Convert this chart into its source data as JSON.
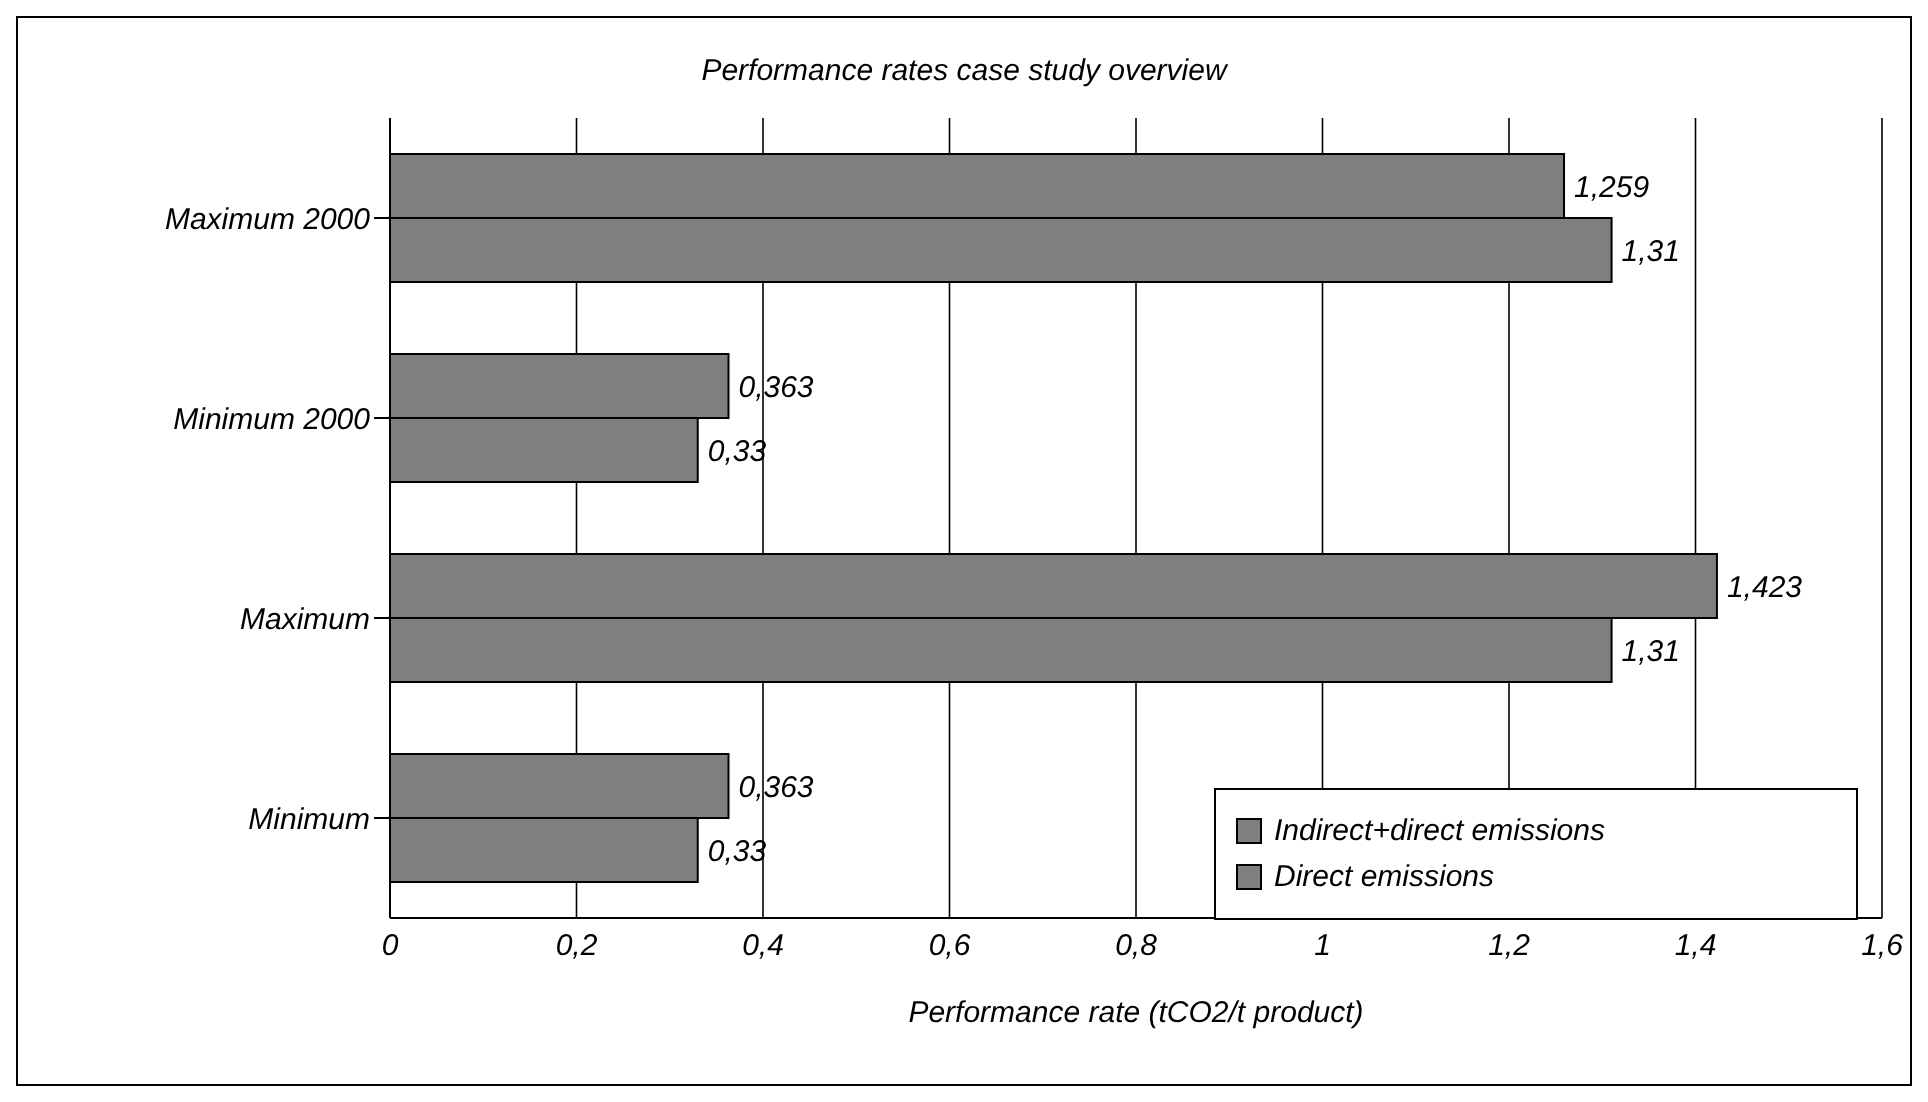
{
  "chart_data": {
    "type": "bar",
    "orientation": "horizontal",
    "title": "Performance rates case study overview",
    "xlabel": "Performance rate (tCO2/t product)",
    "categories": [
      "Maximum 2000",
      "Minimum 2000",
      "Maximum",
      "Minimum"
    ],
    "series": [
      {
        "name": "Indirect+direct emissions",
        "color": "#7f7f7f",
        "values": [
          1.259,
          0.363,
          1.423,
          0.363
        ],
        "value_labels": [
          "1,259",
          "0,363",
          "1,423",
          "0,363"
        ]
      },
      {
        "name": "Direct emissions",
        "color": "#7f7f7f",
        "values": [
          1.31,
          0.33,
          1.31,
          0.33
        ],
        "value_labels": [
          "1,31",
          "0,33",
          "1,31",
          "0,33"
        ]
      }
    ],
    "xlim": [
      0,
      1.6
    ],
    "xticks": [
      0,
      {
        "value": 0.2,
        "label": "0,2"
      },
      {
        "value": 0.4,
        "label": "0,4"
      },
      {
        "value": 0.6,
        "label": "0,6"
      },
      {
        "value": 0.8,
        "label": "0,8"
      },
      1,
      {
        "value": 1.2,
        "label": "1,2"
      },
      {
        "value": 1.4,
        "label": "1,4"
      },
      {
        "value": 1.6,
        "label": "1,6"
      }
    ],
    "grid": "x",
    "legend": "bottom right"
  }
}
